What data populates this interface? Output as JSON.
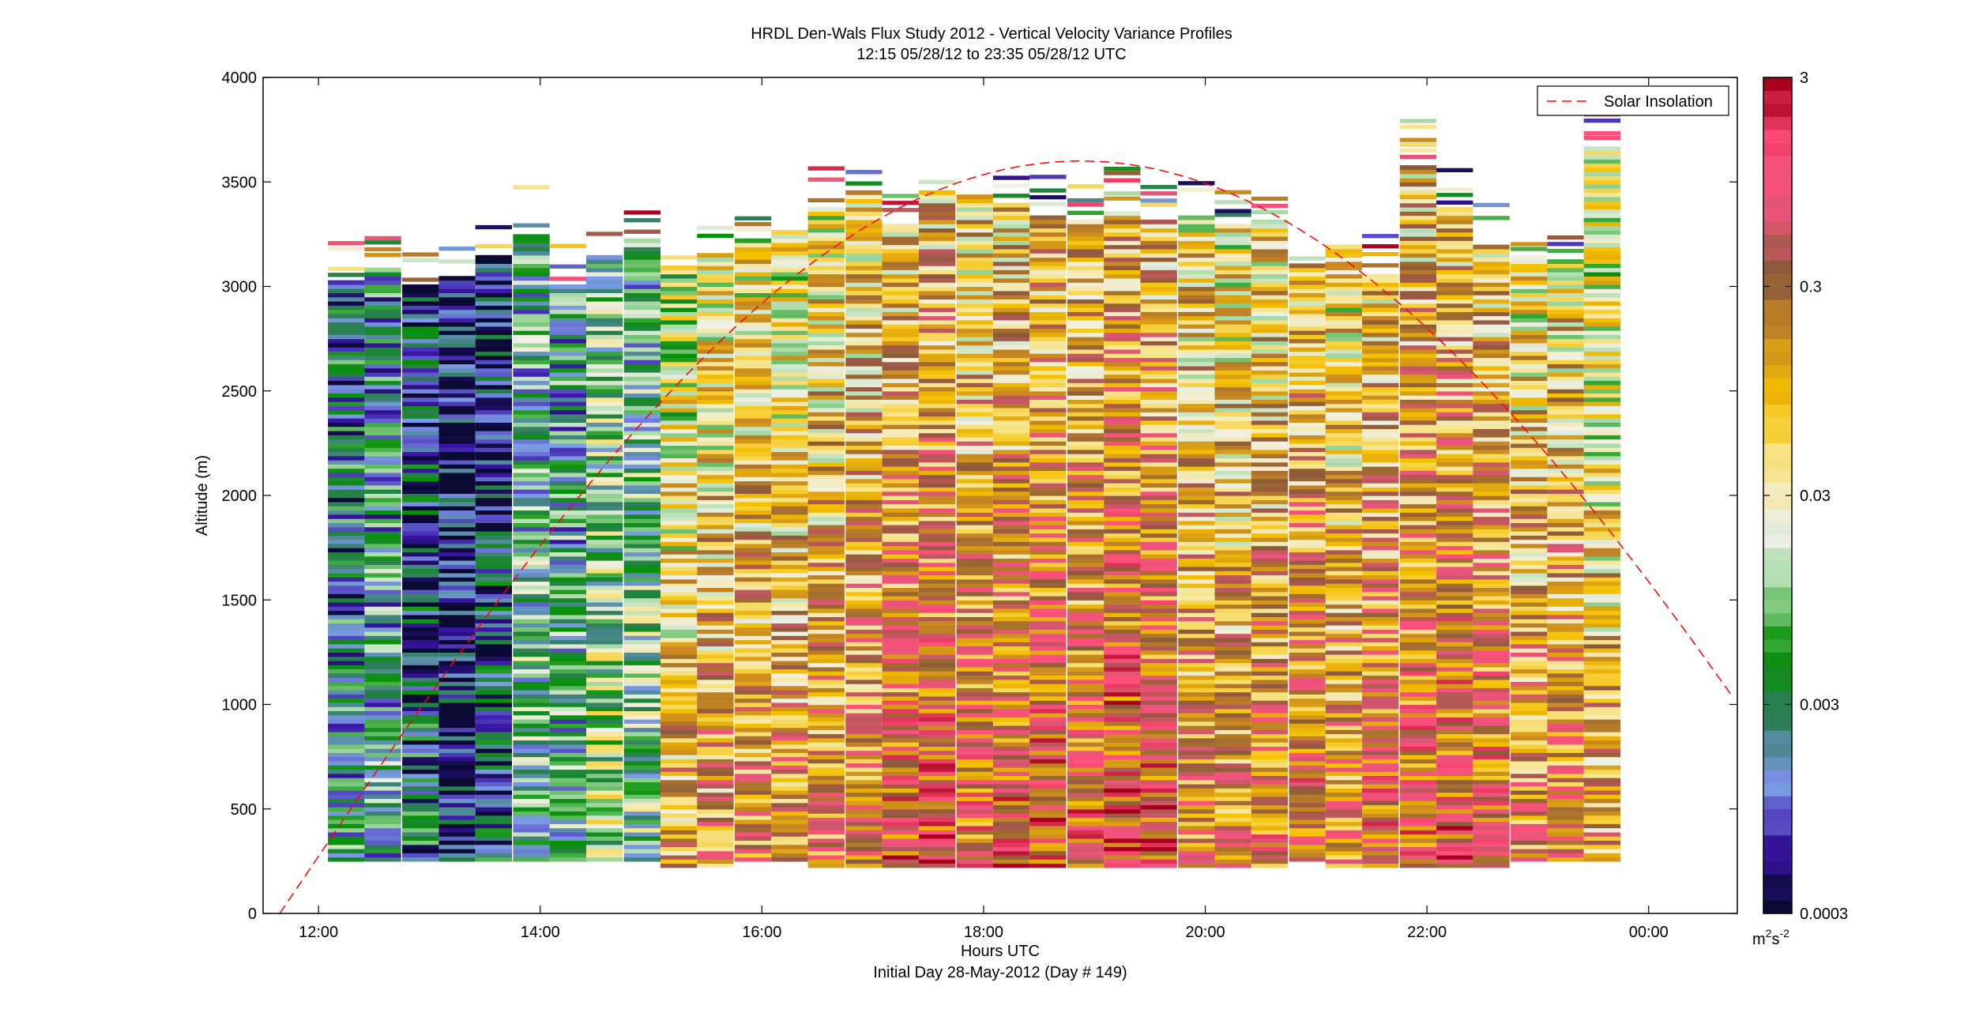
{
  "chart_data": {
    "type": "heatmap",
    "title": "HRDL Den-Wals Flux Study 2012 - Vertical Velocity Variance Profiles",
    "subtitle": "12:15 05/28/12 to 23:35 05/28/12  UTC",
    "xlabel": "Hours UTC",
    "xlabel2": "Initial Day 28-May-2012 (Day # 149)",
    "ylabel": "Altitude (m)",
    "x_range_hours": [
      11.5,
      24.8
    ],
    "ylim": [
      0,
      4000
    ],
    "x_ticks": [
      {
        "hour": 12,
        "label": "12:00"
      },
      {
        "hour": 14,
        "label": "14:00"
      },
      {
        "hour": 16,
        "label": "16:00"
      },
      {
        "hour": 18,
        "label": "18:00"
      },
      {
        "hour": 20,
        "label": "20:00"
      },
      {
        "hour": 22,
        "label": "22:00"
      },
      {
        "hour": 24,
        "label": "00:00"
      }
    ],
    "y_ticks": [
      0,
      500,
      1000,
      1500,
      2000,
      2500,
      3000,
      3500,
      4000
    ],
    "grid": false,
    "colorbar": {
      "scale": "log",
      "range": [
        0.0003,
        3
      ],
      "ticks": [
        "3",
        "0.3",
        "0.03",
        "0.003",
        "0.0003"
      ],
      "unit_base": "m",
      "unit_exp1": "2",
      "unit_mid": "s",
      "unit_exp2": "-2",
      "colors": [
        "#0a0a35",
        "#3a14a8",
        "#7d9be8",
        "#2e7d5a",
        "#079107",
        "#9ad59a",
        "#f0f0e6",
        "#f7e48a",
        "#f5c000",
        "#cc8c1f",
        "#8c5a3a",
        "#e8557a",
        "#ff4f7a",
        "#a8001c"
      ]
    },
    "legend": {
      "entry": "Solar Insolation",
      "color": "#ff0000",
      "placement": "top-right"
    },
    "solar_curve": {
      "sunrise_hour": 11.65,
      "sunset_hour": 26.1,
      "peak_hour": 18.95,
      "peak_altitude_equiv": 3600
    },
    "profiles": [
      {
        "hour": 12.25,
        "top": 3020,
        "bottom": 250,
        "mean_log": -2.6
      },
      {
        "hour": 12.58,
        "top": 3080,
        "bottom": 250,
        "mean_log": -2.4
      },
      {
        "hour": 12.92,
        "top": 3000,
        "bottom": 250,
        "mean_log": -2.8
      },
      {
        "hour": 13.25,
        "top": 3050,
        "bottom": 250,
        "mean_log": -3.2
      },
      {
        "hour": 13.58,
        "top": 3150,
        "bottom": 250,
        "mean_log": -2.9
      },
      {
        "hour": 13.92,
        "top": 3250,
        "bottom": 250,
        "mean_log": -2.2
      },
      {
        "hour": 14.25,
        "top": 3000,
        "bottom": 250,
        "mean_log": -2.3
      },
      {
        "hour": 14.58,
        "top": 3150,
        "bottom": 250,
        "mean_log": -1.9
      },
      {
        "hour": 14.92,
        "top": 3220,
        "bottom": 250,
        "mean_log": -2.1
      },
      {
        "hour": 15.25,
        "top": 3100,
        "bottom": 220,
        "mean_log": -0.9
      },
      {
        "hour": 15.58,
        "top": 3150,
        "bottom": 220,
        "mean_log": -0.7
      },
      {
        "hour": 15.92,
        "top": 3230,
        "bottom": 250,
        "mean_log": -0.6
      },
      {
        "hour": 16.25,
        "top": 3260,
        "bottom": 250,
        "mean_log": -0.7
      },
      {
        "hour": 16.58,
        "top": 3380,
        "bottom": 220,
        "mean_log": -0.6
      },
      {
        "hour": 16.92,
        "top": 3450,
        "bottom": 220,
        "mean_log": -0.5
      },
      {
        "hour": 17.25,
        "top": 3300,
        "bottom": 220,
        "mean_log": -0.3
      },
      {
        "hour": 17.58,
        "top": 3460,
        "bottom": 220,
        "mean_log": -0.2
      },
      {
        "hour": 17.92,
        "top": 3440,
        "bottom": 220,
        "mean_log": -0.4
      },
      {
        "hour": 18.25,
        "top": 3390,
        "bottom": 220,
        "mean_log": -0.3
      },
      {
        "hour": 18.58,
        "top": 3330,
        "bottom": 220,
        "mean_log": -0.2
      },
      {
        "hour": 18.92,
        "top": 3320,
        "bottom": 220,
        "mean_log": -0.3
      },
      {
        "hour": 19.25,
        "top": 3350,
        "bottom": 220,
        "mean_log": -0.1
      },
      {
        "hour": 19.58,
        "top": 3320,
        "bottom": 220,
        "mean_log": -0.2
      },
      {
        "hour": 19.92,
        "top": 3330,
        "bottom": 220,
        "mean_log": -0.5
      },
      {
        "hour": 20.25,
        "top": 3300,
        "bottom": 220,
        "mean_log": -0.6
      },
      {
        "hour": 20.58,
        "top": 3320,
        "bottom": 220,
        "mean_log": -0.5
      },
      {
        "hour": 20.92,
        "top": 3100,
        "bottom": 250,
        "mean_log": -0.3
      },
      {
        "hour": 21.25,
        "top": 3200,
        "bottom": 220,
        "mean_log": -0.6
      },
      {
        "hour": 21.58,
        "top": 3060,
        "bottom": 220,
        "mean_log": -0.3
      },
      {
        "hour": 21.92,
        "top": 3580,
        "bottom": 220,
        "mean_log": -0.3
      },
      {
        "hour": 22.25,
        "top": 3370,
        "bottom": 220,
        "mean_log": -0.2
      },
      {
        "hour": 22.58,
        "top": 3200,
        "bottom": 220,
        "mean_log": -0.3
      },
      {
        "hour": 22.92,
        "top": 3140,
        "bottom": 250,
        "mean_log": -0.6
      },
      {
        "hour": 23.25,
        "top": 3130,
        "bottom": 250,
        "mean_log": -0.5
      },
      {
        "hour": 23.58,
        "top": 3670,
        "bottom": 250,
        "mean_log": -0.9
      }
    ]
  }
}
